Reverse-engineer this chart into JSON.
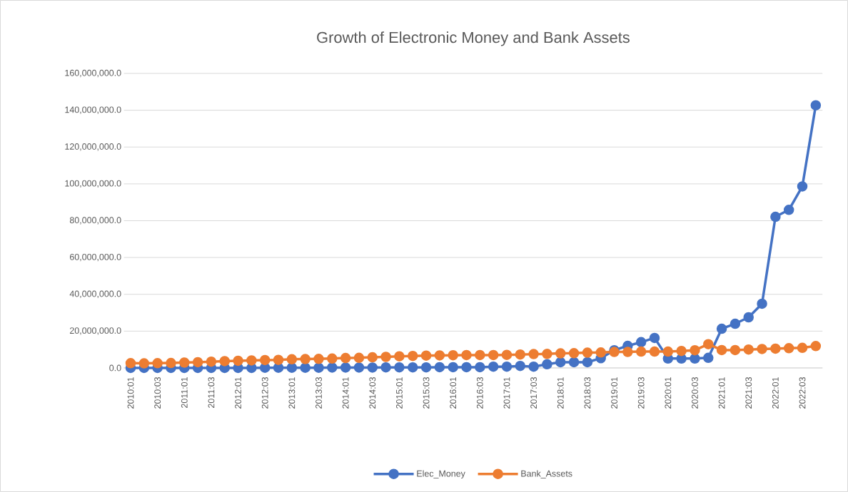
{
  "chart_data": {
    "type": "line",
    "title": "Growth of Electronic Money and Bank Assets",
    "categories": [
      "2010:01",
      null,
      "2010:03",
      null,
      "2011:01",
      null,
      "2011:03",
      null,
      "2012:01",
      null,
      "2012:03",
      null,
      "2013:01",
      null,
      "2013:03",
      null,
      "2014:01",
      null,
      "2014:03",
      null,
      "2015:01",
      null,
      "2015:03",
      null,
      "2016:01",
      null,
      "2016:03",
      null,
      "2017:01",
      null,
      "2017:03",
      null,
      "2018:01",
      null,
      "2018:03",
      null,
      "2019:01",
      null,
      "2019:03",
      null,
      "2020:01",
      null,
      "2020:03",
      null,
      "2021:01",
      null,
      "2021:03",
      null,
      "2022:01",
      null,
      "2022:03",
      null
    ],
    "series": [
      {
        "name": "Elec_Money",
        "color": "#4472c4",
        "values": [
          0,
          0,
          0,
          0,
          0,
          0,
          0,
          0,
          0,
          0,
          100000,
          100000,
          100000,
          100000,
          100000,
          200000,
          200000,
          200000,
          200000,
          300000,
          300000,
          300000,
          300000,
          400000,
          400000,
          400000,
          400000,
          700000,
          700000,
          1100000,
          700000,
          2000000,
          3100000,
          3100000,
          3100000,
          5300000,
          9600000,
          12000000,
          14000000,
          16300000,
          5100000,
          5100000,
          5100000,
          5500000,
          21300000,
          24000000,
          27500000,
          34900000,
          82100000,
          85900000,
          98600000,
          142700000
        ]
      },
      {
        "name": "Bank_Assets",
        "color": "#ed7d31",
        "values": [
          2600000,
          2500000,
          2600000,
          2700000,
          2900000,
          3100000,
          3400000,
          3700000,
          3900000,
          4100000,
          4300000,
          4400000,
          4700000,
          4800000,
          4900000,
          5100000,
          5400000,
          5500000,
          5800000,
          6000000,
          6300000,
          6500000,
          6700000,
          6800000,
          6900000,
          7000000,
          7000000,
          7000000,
          7100000,
          7300000,
          7500000,
          7600000,
          7900000,
          8000000,
          8300000,
          8400000,
          8700000,
          8700000,
          8900000,
          8900000,
          8900000,
          9200000,
          9600000,
          12900000,
          9700000,
          9700000,
          10000000,
          10300000,
          10500000,
          10700000,
          10900000,
          11900000
        ]
      }
    ],
    "ylim": [
      0,
      160000000
    ],
    "yticks": [
      {
        "value": 0,
        "label": "0.0"
      },
      {
        "value": 20000000,
        "label": "20,000,000.0"
      },
      {
        "value": 40000000,
        "label": "40,000,000.0"
      },
      {
        "value": 60000000,
        "label": "60,000,000.0"
      },
      {
        "value": 80000000,
        "label": "80,000,000.0"
      },
      {
        "value": 100000000,
        "label": "100,000,000.0"
      },
      {
        "value": 120000000,
        "label": "120,000,000.0"
      },
      {
        "value": 140000000,
        "label": "140,000,000.0"
      },
      {
        "value": 160000000,
        "label": "160,000,000.0"
      }
    ],
    "grid": "y",
    "legend": "bottom",
    "marker": "circle",
    "line_style": "solid"
  }
}
